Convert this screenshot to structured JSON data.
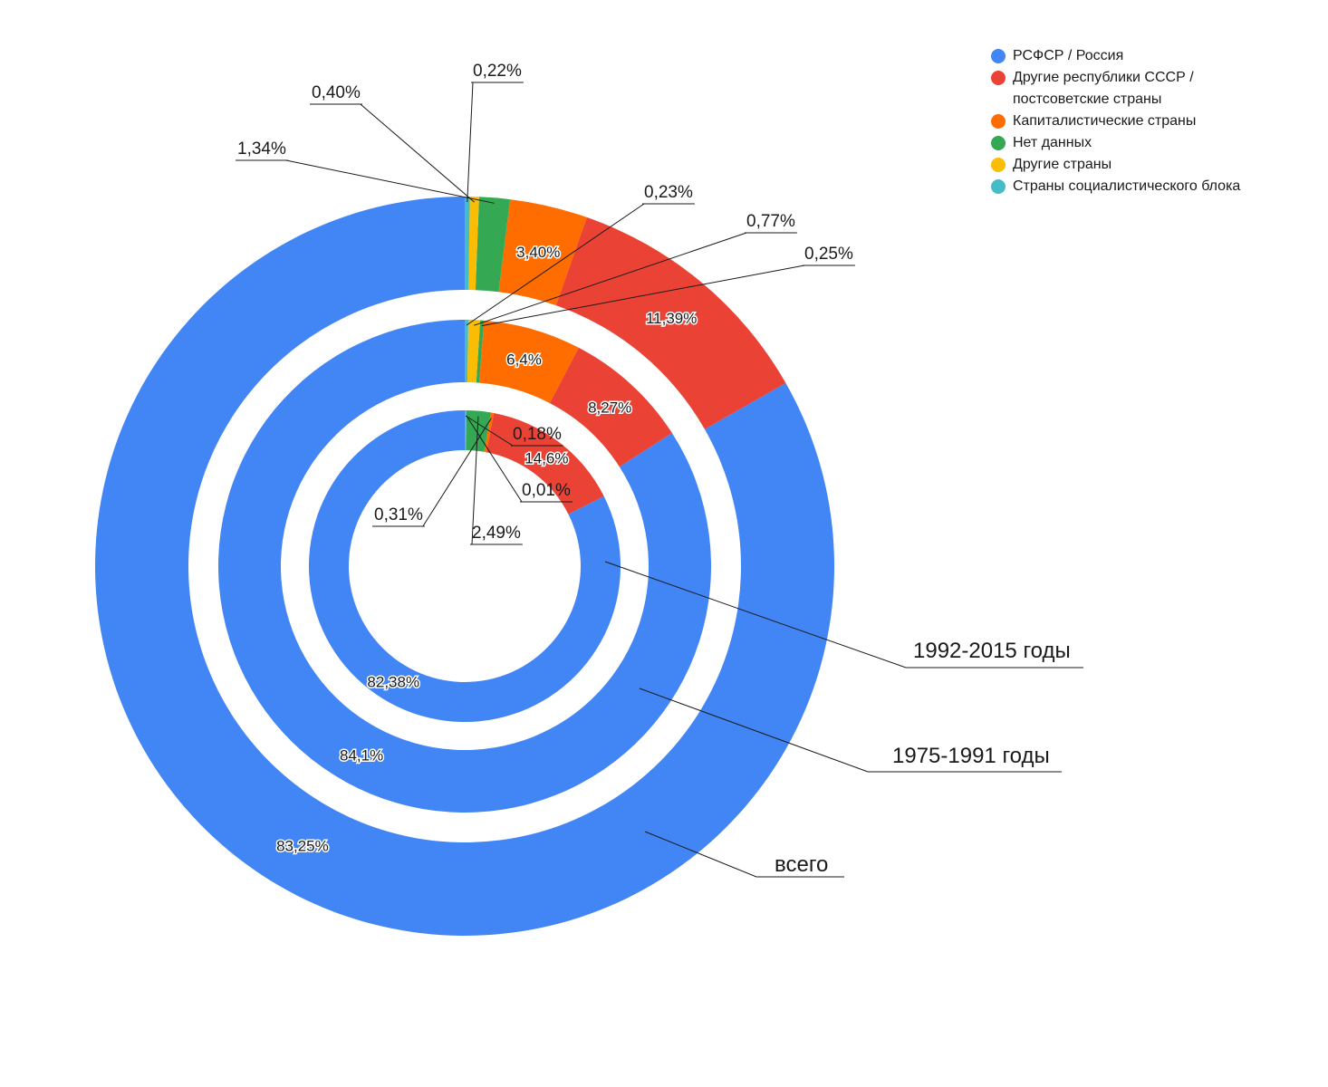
{
  "chart_data": {
    "type": "pie",
    "subtype": "multi-level-donut",
    "categories": [
      "РСФСР / Россия",
      "Другие республики СССР / постсоветские страны",
      "Капиталистические страны",
      "Нет данных",
      "Другие страны",
      "Страны социалистического блока"
    ],
    "colors": [
      "#4285f4",
      "#ea4335",
      "#ff6d01",
      "#34a853",
      "#fbbc04",
      "#46bdc6"
    ],
    "legend": {
      "placement": "top-right",
      "items": [
        {
          "line1": "РСФСР / Россия",
          "line2": ""
        },
        {
          "line1": "Другие республики СССР /",
          "line2": "постсоветские страны"
        },
        {
          "line1": "Капиталистические страны",
          "line2": ""
        },
        {
          "line1": "Нет данных",
          "line2": ""
        },
        {
          "line1": "Другие страны",
          "line2": ""
        },
        {
          "line1": "Страны социалистического блока",
          "line2": ""
        }
      ]
    },
    "series": [
      {
        "name": "всего",
        "values": [
          83.25,
          11.39,
          3.4,
          1.34,
          0.4,
          0.22
        ],
        "labels": [
          "83,25%",
          "11,39%",
          "3,40%",
          "1,34%",
          "0,40%",
          "0,22%"
        ]
      },
      {
        "name": "1975-1991 годы",
        "values": [
          84.1,
          8.27,
          6.4,
          0.25,
          0.77,
          0.23
        ],
        "labels": [
          "84,1%",
          "8,27%",
          "6,4%",
          "0,25%",
          "0,77%",
          "0,23%"
        ]
      },
      {
        "name": "1992-2015 годы",
        "values": [
          82.38,
          14.6,
          0.31,
          2.49,
          0.01,
          0.18
        ],
        "labels": [
          "82,38%",
          "14,6%",
          "0,31%",
          "2,49%",
          "0,01%",
          "0,18%"
        ]
      }
    ]
  }
}
